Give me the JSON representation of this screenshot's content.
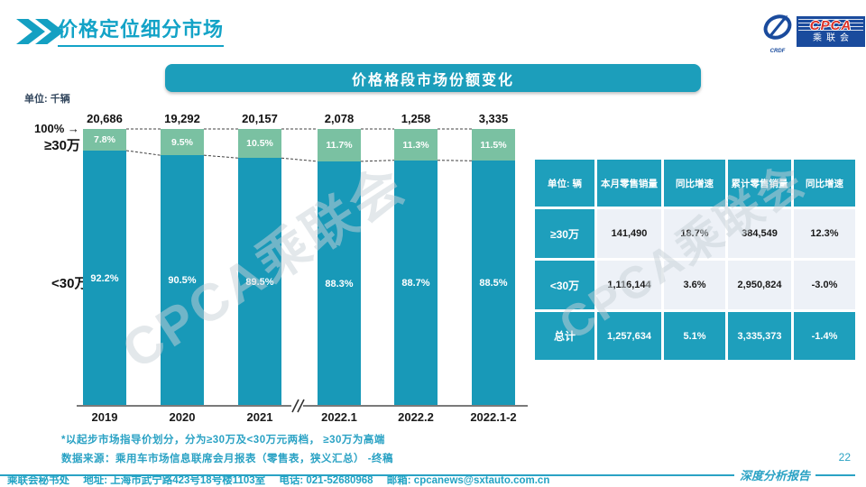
{
  "header": {
    "title": "价格定位细分市场"
  },
  "logo": {
    "cpca": "CPCA",
    "cn": "乘联会",
    "sub": "CRDF"
  },
  "unit_label": "单位: 千辆",
  "watermark": "CPCA乘联会",
  "chart_data": {
    "type": "bar",
    "subtype": "100%-stacked-column",
    "title": "价格格段市场份额变化",
    "unit": "千辆",
    "categories": [
      "2019",
      "2020",
      "2021",
      "2022.1",
      "2022.2",
      "2022.1-2"
    ],
    "totals": [
      20686,
      19292,
      20157,
      2078,
      1258,
      3335
    ],
    "totals_display": [
      "20,686",
      "19,292",
      "20,157",
      "2,078",
      "1,258",
      "3,335"
    ],
    "series": [
      {
        "name": "≥30万",
        "values": [
          7.8,
          9.5,
          10.5,
          11.7,
          11.3,
          11.5
        ],
        "color": "#7AC1A2"
      },
      {
        "name": "<30万",
        "values": [
          92.2,
          90.5,
          89.5,
          88.3,
          88.7,
          88.5
        ],
        "color": "#1899B8"
      }
    ],
    "value_suffix": "%",
    "ylim": [
      0,
      100
    ],
    "axis_break_between": [
      "2021",
      "2022.1"
    ],
    "left_labels": {
      "hundred": "100%",
      "arrow": "→",
      "top": "≥30万",
      "bottom": "<30万"
    }
  },
  "table": {
    "corner": "单位: 辆",
    "columns": [
      "本月零售销量",
      "同比增速",
      "累计零售销量",
      "同比增速"
    ],
    "rows": [
      {
        "label": "≥30万",
        "values": [
          "141,490",
          "18.7%",
          "384,549",
          "12.3%"
        ],
        "is_total": false
      },
      {
        "label": "<30万",
        "values": [
          "1,116,144",
          "3.6%",
          "2,950,824",
          "-3.0%"
        ],
        "is_total": false
      },
      {
        "label": "总计",
        "values": [
          "1,257,634",
          "5.1%",
          "3,335,373",
          "-1.4%"
        ],
        "is_total": true
      }
    ]
  },
  "footnotes": [
    "*以起步市场指导价划分，分为≥30万及<30万元两档， ≥30万为高端",
    "数据来源：乘用车市场信息联席会月报表（零售表，狭义汇总） -终稿"
  ],
  "footer": {
    "secretariat": "乘联会秘书处",
    "address": "地址: 上海市武宁路423号18号楼1103室",
    "phone": "电话: 021-52680968",
    "email": "邮箱: cpcanews@sxtauto.com.cn",
    "report": "深度分析报告"
  },
  "page_number": "22"
}
